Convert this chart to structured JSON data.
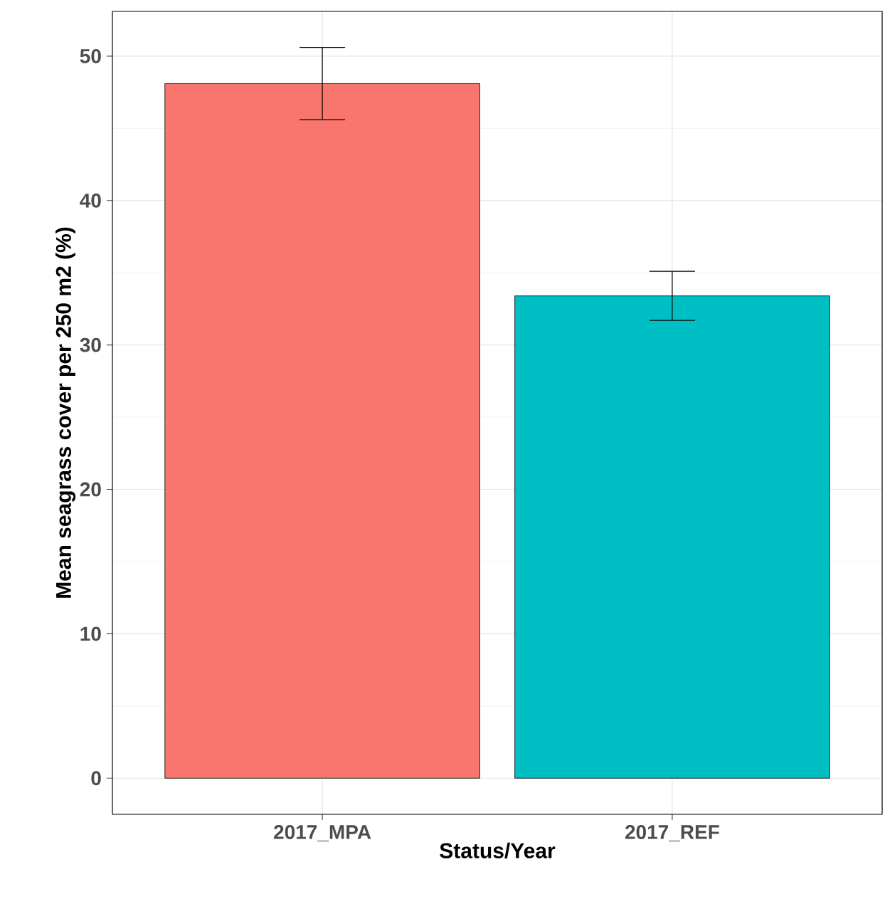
{
  "chart_data": {
    "type": "bar",
    "xlabel": "Status/Year",
    "ylabel": "Mean seagrass cover per 250 m2 (%)",
    "categories": [
      "2017_MPA",
      "2017_REF"
    ],
    "values": [
      48.1,
      33.4
    ],
    "errors": [
      2.5,
      1.7
    ],
    "colors": [
      "#f8766d",
      "#00bfc4"
    ],
    "ylim": [
      -2.5,
      53.1
    ],
    "yticks": [
      0,
      10,
      20,
      30,
      40,
      50
    ],
    "grid": true
  }
}
